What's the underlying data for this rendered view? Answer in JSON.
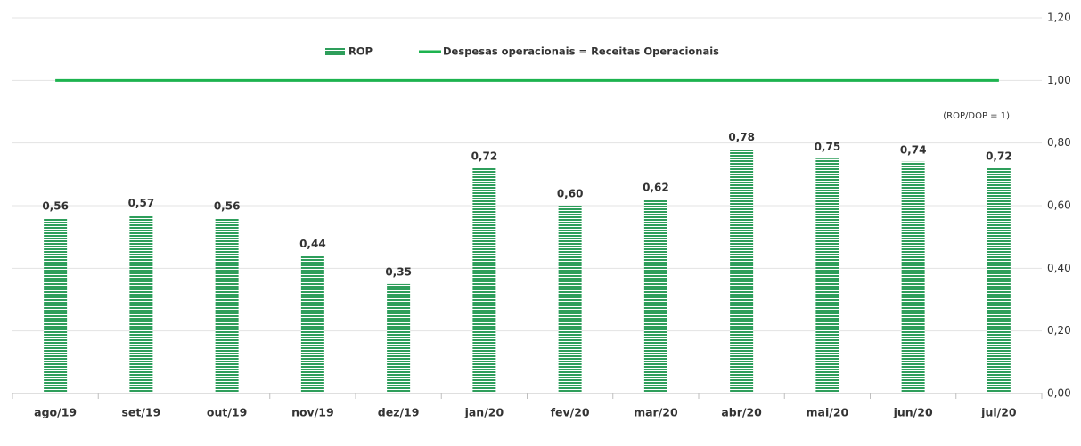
{
  "chart_data": {
    "type": "bar",
    "categories": [
      "ago/19",
      "set/19",
      "out/19",
      "nov/19",
      "dez/19",
      "jan/20",
      "fev/20",
      "mar/20",
      "abr/20",
      "mai/20",
      "jun/20",
      "jul/20"
    ],
    "series": [
      {
        "name": "ROP",
        "color": "#2e9e5b",
        "values": [
          0.56,
          0.57,
          0.56,
          0.44,
          0.35,
          0.72,
          0.6,
          0.62,
          0.78,
          0.75,
          0.74,
          0.72
        ],
        "value_labels": [
          "0,56",
          "0,57",
          "0,56",
          "0,44",
          "0,35",
          "0,72",
          "0,60",
          "0,62",
          "0,78",
          "0,75",
          "0,74",
          "0,72"
        ]
      },
      {
        "name": "Despesas operacionais = Receitas Operacionais",
        "color": "#1db34f",
        "type": "line",
        "values": [
          1,
          1,
          1,
          1,
          1,
          1,
          1,
          1,
          1,
          1,
          1,
          1
        ]
      }
    ],
    "annotation": "(ROP/DOP = 1)",
    "ylim": [
      0,
      1.2
    ],
    "yticks": [
      {
        "value": 0,
        "label": "0,00"
      },
      {
        "value": 0.2,
        "label": "0,20"
      },
      {
        "value": 0.4,
        "label": "0,40"
      },
      {
        "value": 0.6,
        "label": "0,60"
      },
      {
        "value": 0.8,
        "label": "0,80"
      },
      {
        "value": 1,
        "label": "1,00"
      },
      {
        "value": 1.2,
        "label": "1,20"
      }
    ],
    "grid": true
  }
}
